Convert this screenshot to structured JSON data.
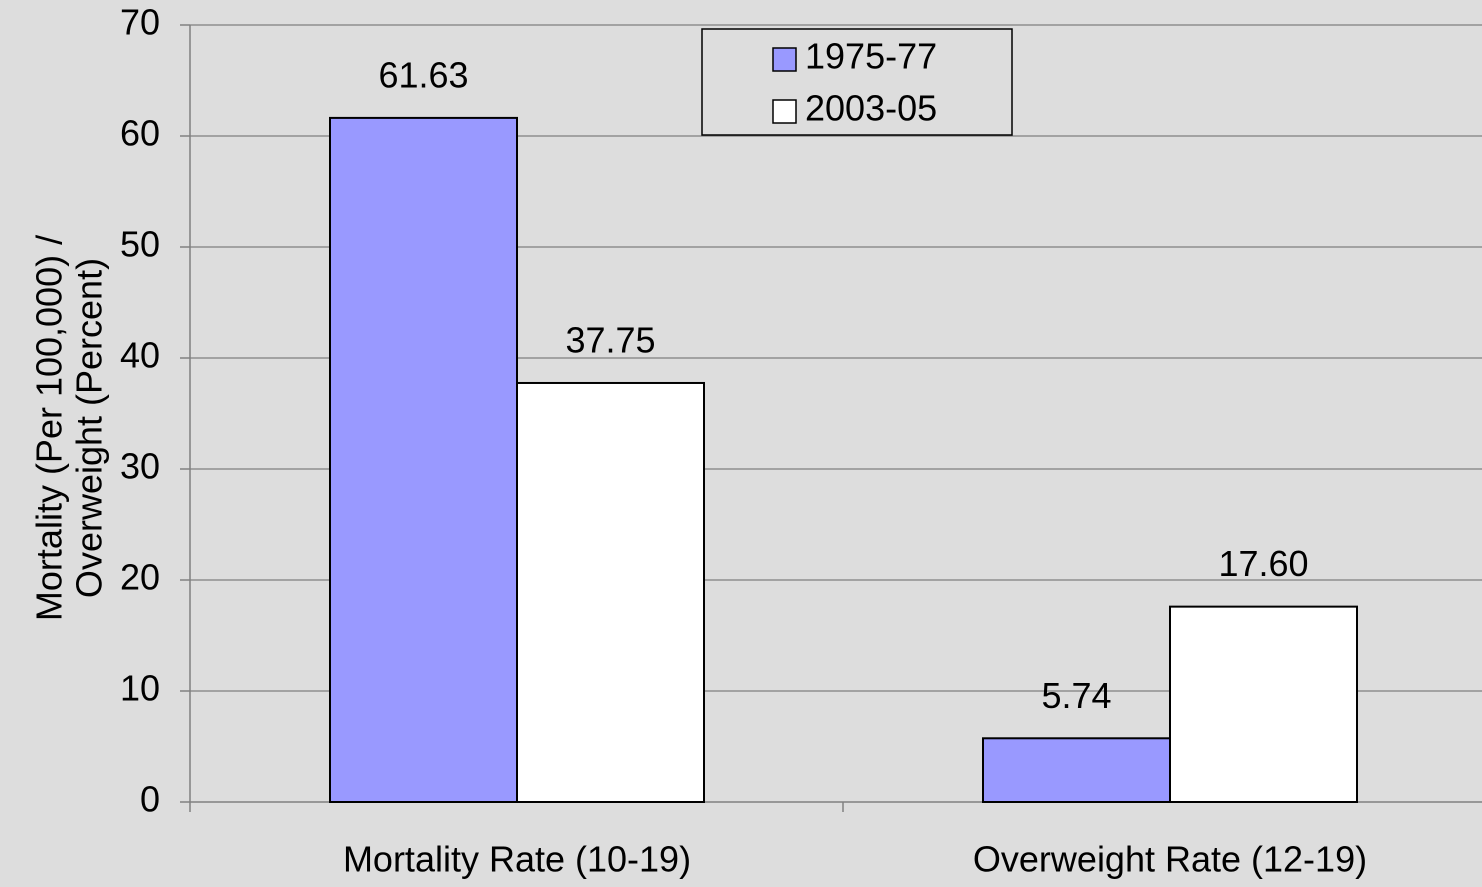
{
  "chart_data": {
    "type": "bar",
    "y_label": [
      "Mortality (Per 100,000) /",
      "Overweight (Percent)"
    ],
    "categories": [
      "Mortality Rate (10-19)",
      "Overweight Rate (12-19)"
    ],
    "series": [
      {
        "name": "1975-77",
        "color": "#9999ff",
        "values": [
          61.63,
          5.74
        ],
        "value_labels": [
          "61.63",
          "5.74"
        ]
      },
      {
        "name": "2003-05",
        "color": "#ffffff",
        "values": [
          37.75,
          17.6
        ],
        "value_labels": [
          "37.75",
          "17.60"
        ]
      }
    ],
    "ylim": [
      0,
      70
    ],
    "yticks": [
      0,
      10,
      20,
      30,
      40,
      50,
      60,
      70
    ],
    "grid": true,
    "legend": "top"
  }
}
